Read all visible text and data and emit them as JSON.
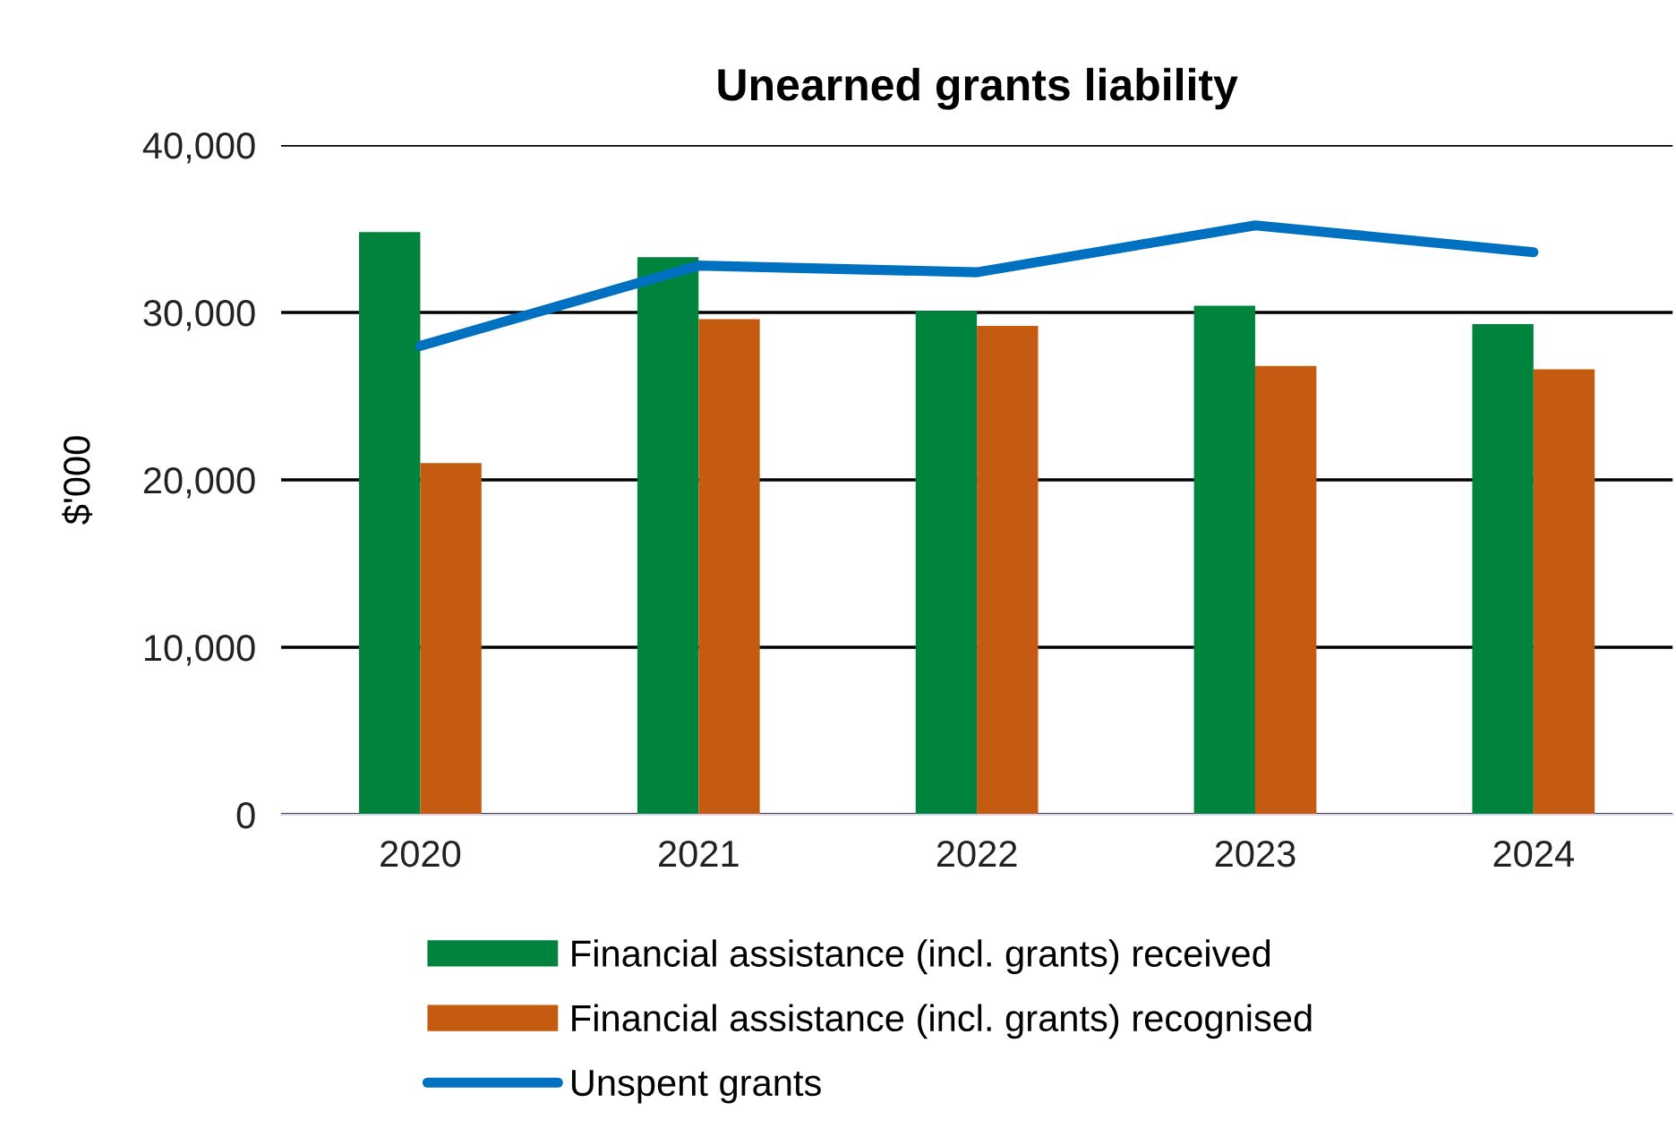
{
  "chart_data": {
    "type": "bar",
    "title": "Unearned grants liability",
    "ylabel": "$'000",
    "categories": [
      "2020",
      "2021",
      "2022",
      "2023",
      "2024"
    ],
    "series": [
      {
        "name": "Financial assistance (incl. grants) received",
        "color": "#00843d",
        "values": [
          34800,
          33300,
          30100,
          30400,
          29300
        ]
      },
      {
        "name": "Financial assistance (incl. grants) recognised",
        "color": "#c55a11",
        "values": [
          21000,
          29600,
          29200,
          26800,
          26600
        ]
      },
      {
        "name": "Unspent grants",
        "type": "line",
        "color": "#0070c0",
        "values": [
          28000,
          32800,
          32400,
          35200,
          33600
        ]
      }
    ],
    "ylim": [
      0,
      40000
    ],
    "yticks": [
      {
        "value": 0,
        "label": "0"
      },
      {
        "value": 10000,
        "label": "10,000"
      },
      {
        "value": 20000,
        "label": "20,000"
      },
      {
        "value": 30000,
        "label": "30,000"
      },
      {
        "value": 40000,
        "label": "40,000"
      }
    ],
    "grid": "y",
    "legend": "bottom",
    "marker": "none",
    "line_style": "solid"
  }
}
